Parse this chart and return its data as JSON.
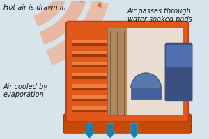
{
  "bg_color": "#d8e4ec",
  "label_hot": "Hot air is drawn in",
  "label_pass": "Air passes through\nwater soaked pads",
  "label_cool": "Air cooled by\nevaporation",
  "body_orange": "#e0581a",
  "body_orange_light": "#f07030",
  "body_orange_dark": "#b84010",
  "body_orange_mid": "#d06020",
  "rib_dark": "#a03808",
  "rib_light": "#f08040",
  "pad_tan": "#b08860",
  "pad_tan_dark": "#806040",
  "pad_slot": "#604020",
  "inner_bg": "#e8ddd0",
  "motor_blue": "#3a4f80",
  "motor_blue_light": "#5070b0",
  "pump_blue": "#4060a0",
  "pump_dome_color": "#5878b0",
  "base_orange": "#c84808",
  "base_bottom": "#b03000",
  "hot_arrow_fill": "#e06030",
  "hot_arrow_light": "#f0a888",
  "cool_arrow": "#1e7eaa",
  "cool_arrow_light": "#3aa0cc",
  "text_color": "#1a1a1a",
  "font_size": 7.0
}
